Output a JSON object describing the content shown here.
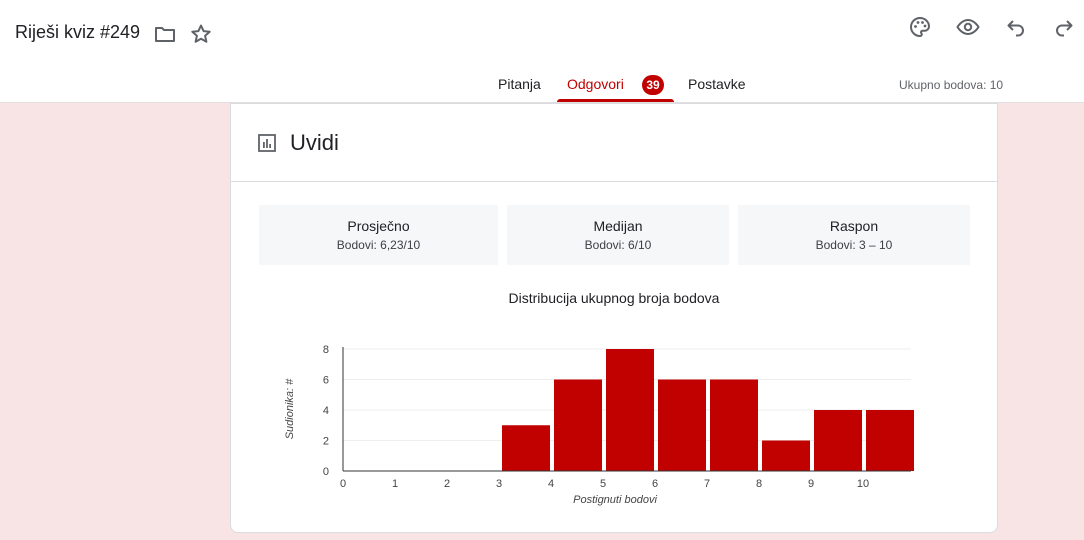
{
  "header": {
    "title": "Riješi kviz #249",
    "tabs": [
      {
        "label": "Pitanja"
      },
      {
        "label": "Odgovori",
        "badge": "39"
      },
      {
        "label": "Postavke"
      }
    ],
    "total_points": "Ukupno bodova: 10"
  },
  "insights": {
    "title": "Uvidi",
    "stats": [
      {
        "label": "Prosječno",
        "value": "Bodovi: 6,23/10"
      },
      {
        "label": "Medijan",
        "value": "Bodovi: 6/10"
      },
      {
        "label": "Raspon",
        "value": "Bodovi: 3 – 10"
      }
    ]
  },
  "colors": {
    "accent": "#c10000",
    "background": "#f8e4e4"
  },
  "chart_data": {
    "type": "bar",
    "title": "Distribucija ukupnog broja bodova",
    "xlabel": "Postignuti bodovi",
    "ylabel": "Sudionika: #",
    "categories": [
      "0",
      "1",
      "2",
      "3",
      "4",
      "5",
      "6",
      "7",
      "8",
      "9",
      "10"
    ],
    "values": [
      0,
      0,
      0,
      3,
      6,
      8,
      6,
      6,
      2,
      4,
      4
    ],
    "ylim": [
      0,
      8
    ],
    "yticks": [
      0,
      2,
      4,
      6,
      8
    ],
    "grid": true,
    "color": "#c10000"
  }
}
